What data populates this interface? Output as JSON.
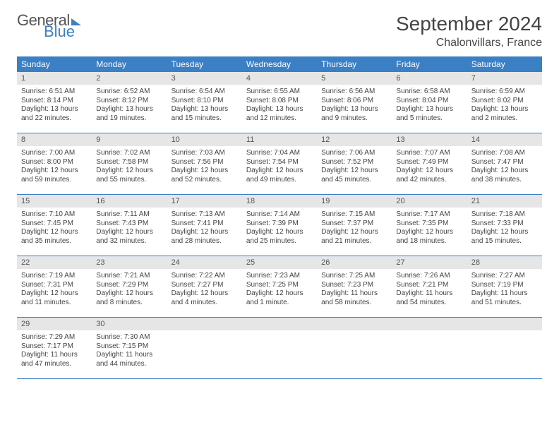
{
  "logo": {
    "line1": "General",
    "line2": "Blue"
  },
  "title": "September 2024",
  "location": "Chalonvillars, France",
  "colors": {
    "header_bg": "#3b7fc4",
    "header_text": "#ffffff",
    "daynum_bg": "#e6e6e6",
    "border": "#3b7fc4",
    "text": "#444444"
  },
  "weekdays": [
    "Sunday",
    "Monday",
    "Tuesday",
    "Wednesday",
    "Thursday",
    "Friday",
    "Saturday"
  ],
  "weeks": [
    {
      "nums": [
        "1",
        "2",
        "3",
        "4",
        "5",
        "6",
        "7"
      ],
      "cells": [
        {
          "l1": "Sunrise: 6:51 AM",
          "l2": "Sunset: 8:14 PM",
          "l3": "Daylight: 13 hours",
          "l4": "and 22 minutes."
        },
        {
          "l1": "Sunrise: 6:52 AM",
          "l2": "Sunset: 8:12 PM",
          "l3": "Daylight: 13 hours",
          "l4": "and 19 minutes."
        },
        {
          "l1": "Sunrise: 6:54 AM",
          "l2": "Sunset: 8:10 PM",
          "l3": "Daylight: 13 hours",
          "l4": "and 15 minutes."
        },
        {
          "l1": "Sunrise: 6:55 AM",
          "l2": "Sunset: 8:08 PM",
          "l3": "Daylight: 13 hours",
          "l4": "and 12 minutes."
        },
        {
          "l1": "Sunrise: 6:56 AM",
          "l2": "Sunset: 8:06 PM",
          "l3": "Daylight: 13 hours",
          "l4": "and 9 minutes."
        },
        {
          "l1": "Sunrise: 6:58 AM",
          "l2": "Sunset: 8:04 PM",
          "l3": "Daylight: 13 hours",
          "l4": "and 5 minutes."
        },
        {
          "l1": "Sunrise: 6:59 AM",
          "l2": "Sunset: 8:02 PM",
          "l3": "Daylight: 13 hours",
          "l4": "and 2 minutes."
        }
      ]
    },
    {
      "nums": [
        "8",
        "9",
        "10",
        "11",
        "12",
        "13",
        "14"
      ],
      "cells": [
        {
          "l1": "Sunrise: 7:00 AM",
          "l2": "Sunset: 8:00 PM",
          "l3": "Daylight: 12 hours",
          "l4": "and 59 minutes."
        },
        {
          "l1": "Sunrise: 7:02 AM",
          "l2": "Sunset: 7:58 PM",
          "l3": "Daylight: 12 hours",
          "l4": "and 55 minutes."
        },
        {
          "l1": "Sunrise: 7:03 AM",
          "l2": "Sunset: 7:56 PM",
          "l3": "Daylight: 12 hours",
          "l4": "and 52 minutes."
        },
        {
          "l1": "Sunrise: 7:04 AM",
          "l2": "Sunset: 7:54 PM",
          "l3": "Daylight: 12 hours",
          "l4": "and 49 minutes."
        },
        {
          "l1": "Sunrise: 7:06 AM",
          "l2": "Sunset: 7:52 PM",
          "l3": "Daylight: 12 hours",
          "l4": "and 45 minutes."
        },
        {
          "l1": "Sunrise: 7:07 AM",
          "l2": "Sunset: 7:49 PM",
          "l3": "Daylight: 12 hours",
          "l4": "and 42 minutes."
        },
        {
          "l1": "Sunrise: 7:08 AM",
          "l2": "Sunset: 7:47 PM",
          "l3": "Daylight: 12 hours",
          "l4": "and 38 minutes."
        }
      ]
    },
    {
      "nums": [
        "15",
        "16",
        "17",
        "18",
        "19",
        "20",
        "21"
      ],
      "cells": [
        {
          "l1": "Sunrise: 7:10 AM",
          "l2": "Sunset: 7:45 PM",
          "l3": "Daylight: 12 hours",
          "l4": "and 35 minutes."
        },
        {
          "l1": "Sunrise: 7:11 AM",
          "l2": "Sunset: 7:43 PM",
          "l3": "Daylight: 12 hours",
          "l4": "and 32 minutes."
        },
        {
          "l1": "Sunrise: 7:13 AM",
          "l2": "Sunset: 7:41 PM",
          "l3": "Daylight: 12 hours",
          "l4": "and 28 minutes."
        },
        {
          "l1": "Sunrise: 7:14 AM",
          "l2": "Sunset: 7:39 PM",
          "l3": "Daylight: 12 hours",
          "l4": "and 25 minutes."
        },
        {
          "l1": "Sunrise: 7:15 AM",
          "l2": "Sunset: 7:37 PM",
          "l3": "Daylight: 12 hours",
          "l4": "and 21 minutes."
        },
        {
          "l1": "Sunrise: 7:17 AM",
          "l2": "Sunset: 7:35 PM",
          "l3": "Daylight: 12 hours",
          "l4": "and 18 minutes."
        },
        {
          "l1": "Sunrise: 7:18 AM",
          "l2": "Sunset: 7:33 PM",
          "l3": "Daylight: 12 hours",
          "l4": "and 15 minutes."
        }
      ]
    },
    {
      "nums": [
        "22",
        "23",
        "24",
        "25",
        "26",
        "27",
        "28"
      ],
      "cells": [
        {
          "l1": "Sunrise: 7:19 AM",
          "l2": "Sunset: 7:31 PM",
          "l3": "Daylight: 12 hours",
          "l4": "and 11 minutes."
        },
        {
          "l1": "Sunrise: 7:21 AM",
          "l2": "Sunset: 7:29 PM",
          "l3": "Daylight: 12 hours",
          "l4": "and 8 minutes."
        },
        {
          "l1": "Sunrise: 7:22 AM",
          "l2": "Sunset: 7:27 PM",
          "l3": "Daylight: 12 hours",
          "l4": "and 4 minutes."
        },
        {
          "l1": "Sunrise: 7:23 AM",
          "l2": "Sunset: 7:25 PM",
          "l3": "Daylight: 12 hours",
          "l4": "and 1 minute."
        },
        {
          "l1": "Sunrise: 7:25 AM",
          "l2": "Sunset: 7:23 PM",
          "l3": "Daylight: 11 hours",
          "l4": "and 58 minutes."
        },
        {
          "l1": "Sunrise: 7:26 AM",
          "l2": "Sunset: 7:21 PM",
          "l3": "Daylight: 11 hours",
          "l4": "and 54 minutes."
        },
        {
          "l1": "Sunrise: 7:27 AM",
          "l2": "Sunset: 7:19 PM",
          "l3": "Daylight: 11 hours",
          "l4": "and 51 minutes."
        }
      ]
    },
    {
      "nums": [
        "29",
        "30",
        "",
        "",
        "",
        "",
        ""
      ],
      "cells": [
        {
          "l1": "Sunrise: 7:29 AM",
          "l2": "Sunset: 7:17 PM",
          "l3": "Daylight: 11 hours",
          "l4": "and 47 minutes."
        },
        {
          "l1": "Sunrise: 7:30 AM",
          "l2": "Sunset: 7:15 PM",
          "l3": "Daylight: 11 hours",
          "l4": "and 44 minutes."
        },
        {
          "l1": "",
          "l2": "",
          "l3": "",
          "l4": ""
        },
        {
          "l1": "",
          "l2": "",
          "l3": "",
          "l4": ""
        },
        {
          "l1": "",
          "l2": "",
          "l3": "",
          "l4": ""
        },
        {
          "l1": "",
          "l2": "",
          "l3": "",
          "l4": ""
        },
        {
          "l1": "",
          "l2": "",
          "l3": "",
          "l4": ""
        }
      ]
    }
  ]
}
